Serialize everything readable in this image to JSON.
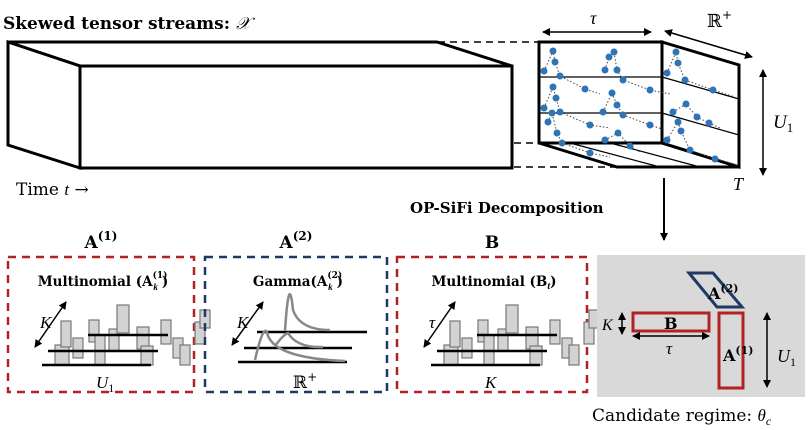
{
  "header": {
    "title": "Skewed tensor streams: ",
    "title_symbol": "𝒳"
  },
  "stream": {
    "time_label": "Time ",
    "time_var": "t",
    "time_arrow": "→"
  },
  "cube": {
    "tau": "τ",
    "rplus": "ℝ",
    "rplus_sup": "+",
    "u1": "U",
    "u1_sub": "1",
    "T": "T"
  },
  "decomposition": {
    "label": "OP-SiFi Decomposition"
  },
  "factors": [
    {
      "title": "A",
      "title_sup": "(1)",
      "dist": "Multinomial (A",
      "dist_sub": "k",
      "dist_sup": "(1)",
      "dist_close": ")",
      "axis_diag": "K",
      "axis_bottom": "U",
      "axis_bottom_sub": "1",
      "color": "#b22222"
    },
    {
      "title": "A",
      "title_sup": "(2)",
      "dist": "Gamma(A",
      "dist_sub": "k",
      "dist_sup": "(2)",
      "dist_close": ")",
      "axis_diag": "K",
      "axis_bottom": "ℝ",
      "axis_bottom_sup": "+",
      "color": "#1f3864"
    },
    {
      "title": "B",
      "dist": "Multinomial (B",
      "dist_sub": "t",
      "dist_close": ")",
      "axis_diag": "τ",
      "axis_bottom": "K",
      "color": "#b22222"
    }
  ],
  "regime": {
    "a2": "A",
    "a2_sup": "(2)",
    "b": "B",
    "a1": "A",
    "a1_sup": "(1)",
    "k": "K",
    "tau": "τ",
    "u1": "U",
    "u1_sub": "1",
    "caption": "Candidate regime: ",
    "caption_symbol": "θ",
    "caption_sub": "c",
    "panel_color": "#d9d9d9"
  },
  "colors": {
    "dots": "#2e75b6",
    "red": "#b22222",
    "navy": "#1f3864",
    "bars": "#d3d3d3"
  }
}
